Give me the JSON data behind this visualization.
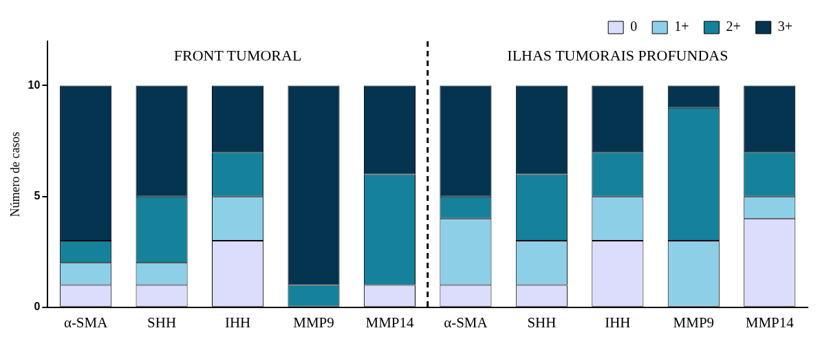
{
  "chart_data": {
    "type": "bar",
    "stacked": true,
    "ylabel": "Número de casos",
    "categories": [
      "α-SMA",
      "SHH",
      "IHH",
      "MMP9",
      "MMP14",
      "α-SMA",
      "SHH",
      "IHH",
      "MMP9",
      "MMP14"
    ],
    "series": [
      {
        "name": "0",
        "color": "#dcdcfc",
        "values": [
          1,
          1,
          3,
          0,
          1,
          1,
          1,
          3,
          0,
          4
        ]
      },
      {
        "name": "1+",
        "color": "#8ecfe8",
        "values": [
          1,
          1,
          2,
          0,
          0,
          3,
          2,
          2,
          3,
          1
        ]
      },
      {
        "name": "2+",
        "color": "#15819a",
        "values": [
          1,
          3,
          2,
          1,
          5,
          1,
          3,
          2,
          6,
          2
        ]
      },
      {
        "name": "3+",
        "color": "#04344f",
        "values": [
          7,
          5,
          3,
          9,
          4,
          5,
          4,
          3,
          1,
          3
        ]
      }
    ],
    "ylim": [
      0,
      12
    ],
    "yticks": [
      0,
      5,
      10
    ],
    "grid": false,
    "legend": "top right",
    "annotations": [
      "FRONT TUMORAL",
      "ILHAS TUMORAIS PROFUNDAS"
    ]
  }
}
